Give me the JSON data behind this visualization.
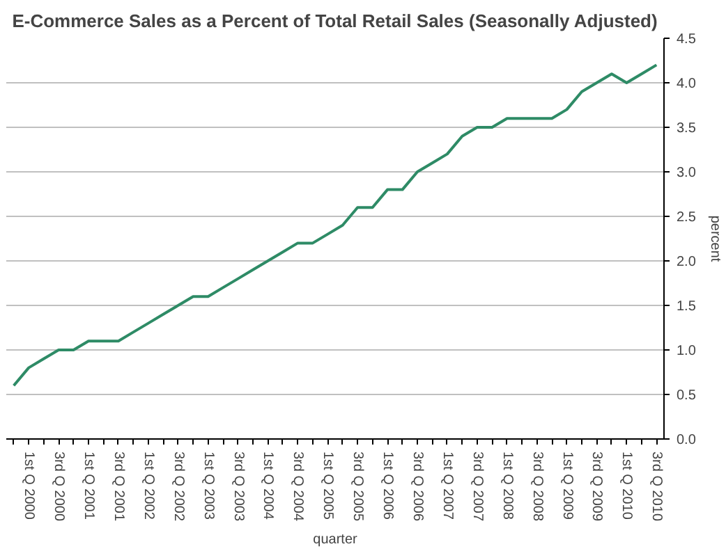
{
  "chart_data": {
    "type": "line",
    "title": "E-Commerce Sales as a Percent of Total Retail Sales (Seasonally Adjusted)",
    "xlabel": "quarter",
    "ylabel": "percent",
    "categories": [
      null,
      "1st Q 2000",
      null,
      "3rd Q 2000",
      null,
      "1st Q 2001",
      null,
      "3rd Q 2001",
      null,
      "1st Q 2002",
      null,
      "3rd Q 2002",
      null,
      "1st Q 2003",
      null,
      "3rd Q 2003",
      null,
      "1st Q 2004",
      null,
      "3rd Q 2004",
      null,
      "1st Q 2005",
      null,
      "3rd Q 2005",
      null,
      "1st Q 2006",
      null,
      "3rd Q 2006",
      null,
      "1st Q 2007",
      null,
      "3rd Q 2007",
      null,
      "1st Q 2008",
      null,
      "3rd Q 2008",
      null,
      "1st Q 2009",
      null,
      "3rd Q 2009",
      null,
      "1st Q 2010",
      null,
      "3rd Q 2010"
    ],
    "series": [
      {
        "color": "#2e8b66",
        "values": [
          0.6,
          0.8,
          0.9,
          1.0,
          1.0,
          1.1,
          1.1,
          1.1,
          1.2,
          1.3,
          1.4,
          1.5,
          1.6,
          1.6,
          1.7,
          1.8,
          1.9,
          2.0,
          2.1,
          2.2,
          2.2,
          2.3,
          2.4,
          2.6,
          2.6,
          2.8,
          2.8,
          3.0,
          3.1,
          3.2,
          3.4,
          3.5,
          3.5,
          3.6,
          3.6,
          3.6,
          3.6,
          3.7,
          3.9,
          4.0,
          4.1,
          4.0,
          4.1,
          4.2
        ]
      }
    ],
    "ylim": [
      0,
      4.5
    ],
    "yticks": [
      {
        "value": 0,
        "label": "0.0"
      },
      {
        "value": 0.5,
        "label": "0.5"
      },
      {
        "value": 1,
        "label": "1.0"
      },
      {
        "value": 1.5,
        "label": "1.5"
      },
      {
        "value": 2,
        "label": "2.0"
      },
      {
        "value": 2.5,
        "label": "2.5"
      },
      {
        "value": 3,
        "label": "3.0"
      },
      {
        "value": 3.5,
        "label": "3.5"
      },
      {
        "value": 4,
        "label": "4.0"
      },
      {
        "value": 4.5,
        "label": "4.5"
      }
    ],
    "grid": "y",
    "marker": "none",
    "line_style": "solid"
  }
}
